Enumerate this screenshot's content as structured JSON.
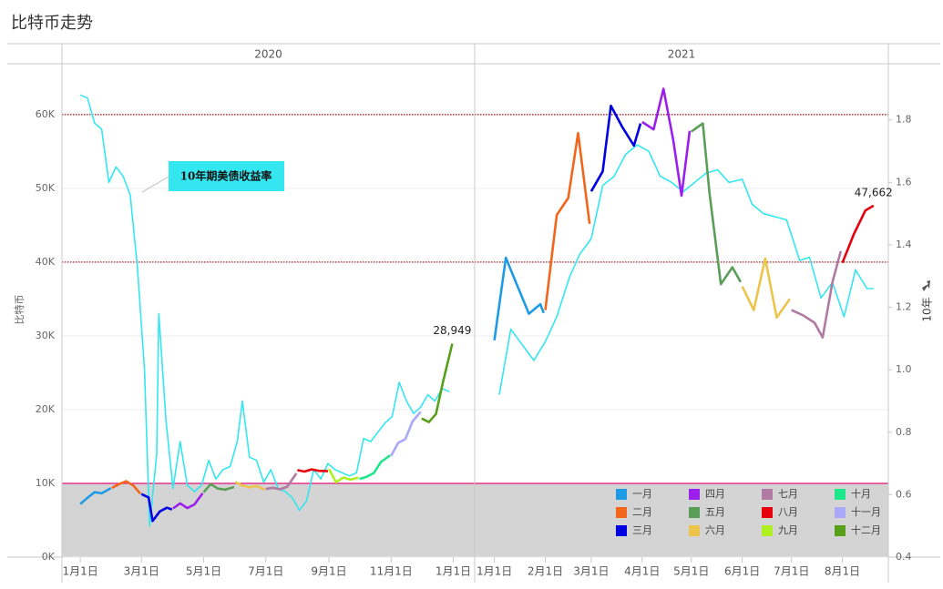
{
  "chart_data": {
    "type": "line",
    "title": "比特币走势",
    "ylabel": "比特币",
    "y2label": "10年",
    "panels": [
      {
        "title": "2020",
        "xlim": [
          "2019-12-14",
          "2021-01-22"
        ],
        "xticks": [
          {
            "value": "2020-01-01",
            "label": "1月1日"
          },
          {
            "value": "2020-03-01",
            "label": "3月1日"
          },
          {
            "value": "2020-05-01",
            "label": "5月1日"
          },
          {
            "value": "2020-07-01",
            "label": "7月1日"
          },
          {
            "value": "2020-09-01",
            "label": "9月1日"
          },
          {
            "value": "2020-11-01",
            "label": "11月1日"
          },
          {
            "value": "2021-01-01",
            "label": "1月1日"
          }
        ]
      },
      {
        "title": "2021",
        "xlim": [
          "2020-12-20",
          "2021-08-29"
        ],
        "xticks": [
          {
            "value": "2021-01-01",
            "label": "1月1日"
          },
          {
            "value": "2021-02-01",
            "label": "2月1日"
          },
          {
            "value": "2021-03-01",
            "label": "3月1日"
          },
          {
            "value": "2021-04-01",
            "label": "4月1日"
          },
          {
            "value": "2021-05-01",
            "label": "5月1日"
          },
          {
            "value": "2021-06-01",
            "label": "6月1日"
          },
          {
            "value": "2021-07-01",
            "label": "7月1日"
          },
          {
            "value": "2021-08-01",
            "label": "8月1日"
          }
        ]
      }
    ],
    "ylim": [
      0,
      66900
    ],
    "yticks": [
      {
        "value": 0,
        "label": "0K"
      },
      {
        "value": 10000,
        "label": "10K"
      },
      {
        "value": 20000,
        "label": "20K"
      },
      {
        "value": 30000,
        "label": "30K"
      },
      {
        "value": 40000,
        "label": "40K"
      },
      {
        "value": 50000,
        "label": "50K"
      },
      {
        "value": 60000,
        "label": "60K"
      }
    ],
    "y2lim": [
      0.4,
      1.98
    ],
    "y2ticks": [
      0.4,
      0.6,
      0.8,
      {
        "value": 1,
        "label": "1.0"
      },
      1.2,
      1.4,
      1.6,
      1.8
    ],
    "grid": true,
    "reference_lines": [
      {
        "value": 60000,
        "color": "#a01010",
        "style": "dotted"
      },
      {
        "value": 40000,
        "color": "#a01010",
        "style": "dotted"
      },
      {
        "value": 10000,
        "color": "#e0107a",
        "style": "solid"
      }
    ],
    "band": {
      "from": 0,
      "to": 10000,
      "color": "#d4d4d4"
    },
    "series": [
      {
        "name": "10年期美债收益率",
        "color": "#33e6f0",
        "axis": "y2",
        "x": [
          "2020-01-01",
          "2020-01-08",
          "2020-01-15",
          "2020-01-22",
          "2020-01-29",
          "2020-02-05",
          "2020-02-12",
          "2020-02-19",
          "2020-02-26",
          "2020-03-04",
          "2020-03-09",
          "2020-03-16",
          "2020-03-18",
          "2020-03-25",
          "2020-04-01",
          "2020-04-08",
          "2020-04-15",
          "2020-04-22",
          "2020-04-29",
          "2020-05-06",
          "2020-05-13",
          "2020-05-20",
          "2020-05-27",
          "2020-06-03",
          "2020-06-08",
          "2020-06-15",
          "2020-06-22",
          "2020-06-29",
          "2020-07-06",
          "2020-07-13",
          "2020-07-20",
          "2020-07-27",
          "2020-08-03",
          "2020-08-10",
          "2020-08-17",
          "2020-08-24",
          "2020-08-31",
          "2020-09-07",
          "2020-09-14",
          "2020-09-21",
          "2020-09-28",
          "2020-10-05",
          "2020-10-12",
          "2020-10-19",
          "2020-10-26",
          "2020-11-02",
          "2020-11-09",
          "2020-11-16",
          "2020-11-23",
          "2020-11-30",
          "2020-12-07",
          "2020-12-14",
          "2020-12-21",
          "2020-12-28",
          "2021-01-04",
          "2021-01-11",
          "2021-01-18",
          "2021-01-25",
          "2021-02-01",
          "2021-02-08",
          "2021-02-16",
          "2021-02-22",
          "2021-03-01",
          "2021-03-08",
          "2021-03-15",
          "2021-03-22",
          "2021-03-29",
          "2021-04-05",
          "2021-04-12",
          "2021-04-19",
          "2021-04-26",
          "2021-05-03",
          "2021-05-10",
          "2021-05-17",
          "2021-05-24",
          "2021-06-01",
          "2021-06-07",
          "2021-06-14",
          "2021-06-21",
          "2021-06-28",
          "2021-07-06",
          "2021-07-12",
          "2021-07-19",
          "2021-07-26",
          "2021-08-02",
          "2021-08-09",
          "2021-08-16",
          "2021-08-20"
        ],
        "values": [
          1.88,
          1.87,
          1.79,
          1.77,
          1.6,
          1.65,
          1.62,
          1.56,
          1.33,
          1.0,
          0.5,
          0.73,
          1.18,
          0.84,
          0.62,
          0.77,
          0.63,
          0.61,
          0.63,
          0.71,
          0.65,
          0.68,
          0.69,
          0.77,
          0.9,
          0.72,
          0.71,
          0.64,
          0.68,
          0.62,
          0.61,
          0.59,
          0.55,
          0.58,
          0.68,
          0.65,
          0.7,
          0.68,
          0.67,
          0.66,
          0.67,
          0.78,
          0.77,
          0.8,
          0.83,
          0.85,
          0.96,
          0.9,
          0.86,
          0.88,
          0.92,
          0.9,
          0.94,
          0.93,
          0.92,
          1.13,
          1.08,
          1.03,
          1.09,
          1.17,
          1.3,
          1.37,
          1.42,
          1.59,
          1.62,
          1.69,
          1.72,
          1.7,
          1.62,
          1.6,
          1.57,
          1.6,
          1.63,
          1.64,
          1.6,
          1.61,
          1.53,
          1.5,
          1.49,
          1.48,
          1.35,
          1.36,
          1.23,
          1.28,
          1.17,
          1.32,
          1.26,
          1.26
        ]
      },
      {
        "name": "一月",
        "color": "#1f9be6",
        "x": [
          "2020-01-01",
          "2020-01-08",
          "2020-01-15",
          "2020-01-22",
          "2020-01-31",
          "2021-01-01",
          "2021-01-08",
          "2021-01-15",
          "2021-01-22",
          "2021-01-29",
          "2021-01-31"
        ],
        "values": [
          7200,
          8050,
          8800,
          8650,
          9350,
          29400,
          40600,
          36800,
          33000,
          34300,
          33100
        ]
      },
      {
        "name": "二月",
        "color": "#f2661c",
        "x": [
          "2020-02-01",
          "2020-02-08",
          "2020-02-15",
          "2020-02-22",
          "2020-02-29",
          "2021-02-01",
          "2021-02-08",
          "2021-02-15",
          "2021-02-21",
          "2021-02-28"
        ],
        "values": [
          9380,
          9900,
          10300,
          9700,
          8600,
          33500,
          46400,
          48700,
          57500,
          45200
        ]
      },
      {
        "name": "三月",
        "color": "#0000e0",
        "x": [
          "2020-03-01",
          "2020-03-08",
          "2020-03-12",
          "2020-03-19",
          "2020-03-26",
          "2020-03-31",
          "2021-03-01",
          "2021-03-08",
          "2021-03-13",
          "2021-03-20",
          "2021-03-27",
          "2021-03-31"
        ],
        "values": [
          8550,
          8100,
          4900,
          6200,
          6700,
          6450,
          49600,
          52300,
          61200,
          58300,
          55800,
          58800
        ]
      },
      {
        "name": "四月",
        "color": "#9b20ee",
        "x": [
          "2020-04-01",
          "2020-04-08",
          "2020-04-15",
          "2020-04-22",
          "2020-04-30",
          "2021-04-01",
          "2021-04-08",
          "2021-04-14",
          "2021-04-20",
          "2021-04-25",
          "2021-04-30"
        ],
        "values": [
          6600,
          7300,
          6650,
          7150,
          8650,
          59000,
          58000,
          63500,
          56500,
          49000,
          57800
        ]
      },
      {
        "name": "五月",
        "color": "#5b9e57",
        "x": [
          "2020-05-01",
          "2020-05-08",
          "2020-05-15",
          "2020-05-22",
          "2020-05-31",
          "2021-05-01",
          "2021-05-08",
          "2021-05-12",
          "2021-05-19",
          "2021-05-26",
          "2021-05-31"
        ],
        "values": [
          8800,
          9900,
          9300,
          9150,
          9500,
          57700,
          58800,
          49500,
          37000,
          39300,
          37300
        ]
      },
      {
        "name": "六月",
        "color": "#ecc44c",
        "x": [
          "2020-06-01",
          "2020-06-08",
          "2020-06-15",
          "2020-06-22",
          "2020-06-30",
          "2021-06-01",
          "2021-06-08",
          "2021-06-15",
          "2021-06-22",
          "2021-06-30"
        ],
        "values": [
          10200,
          9700,
          9450,
          9650,
          9150,
          36700,
          33500,
          40500,
          32500,
          35000
        ]
      },
      {
        "name": "七月",
        "color": "#b07aa3",
        "x": [
          "2020-07-01",
          "2020-07-08",
          "2020-07-15",
          "2020-07-22",
          "2020-07-31",
          "2021-07-01",
          "2021-07-08",
          "2021-07-15",
          "2021-07-20",
          "2021-07-26",
          "2021-07-31"
        ],
        "values": [
          9230,
          9400,
          9200,
          9550,
          11350,
          33500,
          32800,
          31800,
          29800,
          37300,
          41500
        ]
      },
      {
        "name": "八月",
        "color": "#e6000c",
        "x": [
          "2020-08-01",
          "2020-08-08",
          "2020-08-15",
          "2020-08-22",
          "2020-08-31",
          "2021-08-01",
          "2021-08-08",
          "2021-08-15",
          "2021-08-20"
        ],
        "values": [
          11800,
          11600,
          11900,
          11700,
          11650,
          39900,
          43800,
          47000,
          47662
        ],
        "value_labels": [
          null,
          null,
          null,
          null,
          null,
          null,
          null,
          null,
          "47,662"
        ]
      },
      {
        "name": "九月",
        "color": "#b0f022",
        "x": [
          "2020-09-01",
          "2020-09-08",
          "2020-09-15",
          "2020-09-22",
          "2020-09-30"
        ],
        "values": [
          11950,
          10150,
          10800,
          10500,
          10780
        ]
      },
      {
        "name": "十月",
        "color": "#1ee68a",
        "x": [
          "2020-10-01",
          "2020-10-08",
          "2020-10-15",
          "2020-10-22",
          "2020-10-31"
        ],
        "values": [
          10600,
          10900,
          11400,
          12900,
          13800
        ]
      },
      {
        "name": "十一月",
        "color": "#a9a9f7",
        "x": [
          "2020-11-01",
          "2020-11-08",
          "2020-11-15",
          "2020-11-22",
          "2020-11-30"
        ],
        "values": [
          13750,
          15500,
          16000,
          18400,
          19700
        ]
      },
      {
        "name": "十二月",
        "color": "#58a01b",
        "x": [
          "2020-12-01",
          "2020-12-08",
          "2020-12-15",
          "2020-12-22",
          "2020-12-31"
        ],
        "values": [
          18800,
          18300,
          19400,
          23800,
          28949
        ],
        "value_labels": [
          null,
          null,
          null,
          null,
          "28,949"
        ]
      }
    ]
  }
}
